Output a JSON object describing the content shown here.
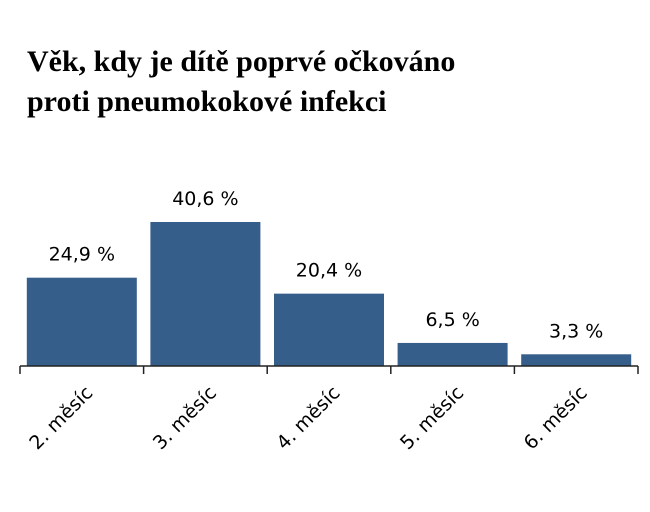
{
  "chart_data": {
    "type": "bar",
    "title_lines": [
      "Věk, kdy je dítě poprvé očkováno",
      "proti pneumokokové infekci"
    ],
    "categories": [
      "2. měsíc",
      "3. měsíc",
      "4. měsíc",
      "5. měsíc",
      "6. měsíc"
    ],
    "values": [
      24.9,
      40.6,
      20.4,
      6.5,
      3.3
    ],
    "value_labels": [
      "24,9 %",
      "40,6 %",
      "20,4 %",
      "6,5 %",
      "3,3 %"
    ],
    "bar_color": "#355e8a",
    "grid": false,
    "legend": "none"
  }
}
